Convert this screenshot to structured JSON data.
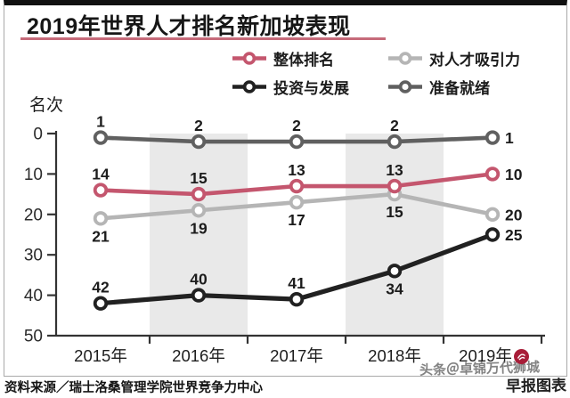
{
  "title": "2019年世界人才排名新加坡表现",
  "legend": [
    {
      "id": "overall-rank",
      "label": "整体排名",
      "color": "#c4566e"
    },
    {
      "id": "talent-attractiveness",
      "label": "对人才吸引力",
      "color": "#b5b5b5"
    },
    {
      "id": "investment-development",
      "label": "投资与发展",
      "color": "#212121"
    },
    {
      "id": "readiness",
      "label": "准备就绪",
      "color": "#606060"
    }
  ],
  "chart_data": {
    "type": "line",
    "title": "2019年世界人才排名新加坡表现",
    "ylabel": "名次",
    "categories": [
      "2015年",
      "2016年",
      "2017年",
      "2018年",
      "2019年"
    ],
    "ylim": [
      0,
      50
    ],
    "y_ticks": [
      0,
      10,
      20,
      30,
      40,
      50
    ],
    "y_axis_inverted": true,
    "grid": false,
    "legend_position": "top",
    "highlight_bands": [
      "2016年",
      "2018年"
    ],
    "series": [
      {
        "id": "overall-rank",
        "name": "整体排名",
        "color": "#c4566e",
        "values": [
          14,
          15,
          13,
          13,
          10
        ],
        "label_pos": [
          "above",
          "above",
          "above",
          "above",
          "right"
        ]
      },
      {
        "id": "talent-attractiveness",
        "name": "对人才吸引力",
        "color": "#b5b5b5",
        "values": [
          21,
          19,
          17,
          15,
          20
        ],
        "label_pos": [
          "below",
          "below",
          "below",
          "below",
          "right"
        ]
      },
      {
        "id": "investment-development",
        "name": "投资与发展",
        "color": "#212121",
        "values": [
          42,
          40,
          41,
          34,
          25
        ],
        "label_pos": [
          "above",
          "above",
          "above",
          "below",
          "right"
        ]
      },
      {
        "id": "readiness",
        "name": "准备就绪",
        "color": "#606060",
        "values": [
          1,
          2,
          2,
          2,
          1
        ],
        "label_pos": [
          "above",
          "above",
          "above",
          "above",
          "right"
        ]
      }
    ]
  },
  "footer": {
    "source": "资料来源／瑞士洛桑管理学院世界竞争力中心"
  },
  "watermark": {
    "toutiao": "头条＠卓锦万代狮城",
    "zaobao": "早报图表"
  }
}
